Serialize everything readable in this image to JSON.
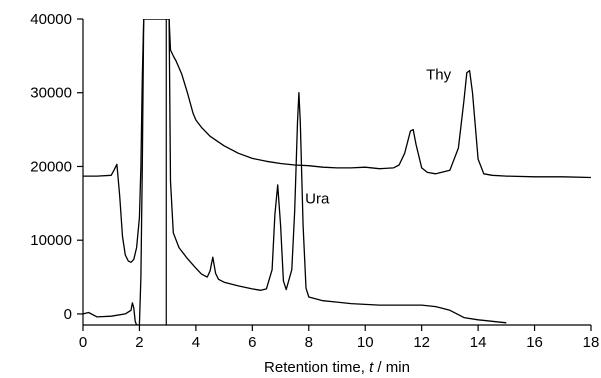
{
  "chart_data": {
    "type": "line",
    "title": "",
    "xlabel_parts": [
      "Retention time, ",
      "t",
      " / min"
    ],
    "ylabel": "",
    "xlim": [
      0,
      18
    ],
    "ylim": [
      -1500,
      40000
    ],
    "x_ticks": [
      0,
      2,
      4,
      6,
      8,
      10,
      12,
      14,
      16,
      18
    ],
    "y_ticks": [
      0,
      10000,
      20000,
      30000,
      40000
    ],
    "grid": false,
    "legend": "none",
    "annotations": [
      {
        "text": "Thy",
        "x": 12.6,
        "y": 31800
      },
      {
        "text": "Ura",
        "x": 8.3,
        "y": 15000
      }
    ],
    "vertical_marker_x": 2.95,
    "series": [
      {
        "x": [
          0,
          0.5,
          1.0,
          1.1,
          1.2,
          1.3,
          1.4,
          1.5,
          1.6,
          1.7,
          1.8,
          1.9,
          2.0,
          2.05,
          2.1,
          2.15,
          2.2,
          2.3,
          2.5,
          2.7,
          2.9,
          3.0,
          3.05,
          3.1,
          3.2,
          3.3,
          3.5,
          3.7,
          3.9,
          4.0,
          4.2,
          4.5,
          5.0,
          5.5,
          6.0,
          6.5,
          7.0,
          7.5,
          8.0,
          8.5,
          9.0,
          9.5,
          10.0,
          10.5,
          11.0,
          11.2,
          11.4,
          11.6,
          11.7,
          11.8,
          12.0,
          12.2,
          12.5,
          13.0,
          13.3,
          13.5,
          13.6,
          13.7,
          13.8,
          14.0,
          14.2,
          14.5,
          15.0,
          16.0,
          17.0,
          18.0
        ],
        "y": [
          18700,
          18700,
          18800,
          19500,
          20300,
          16000,
          10500,
          8000,
          7200,
          7000,
          7400,
          9000,
          13000,
          20000,
          32000,
          40000,
          40000,
          40000,
          40000,
          40000,
          40000,
          40000,
          40000,
          35800,
          35000,
          34300,
          32500,
          30000,
          27200,
          26300,
          25300,
          24100,
          22800,
          21800,
          21100,
          20700,
          20400,
          20200,
          20100,
          19900,
          19800,
          19800,
          19900,
          19700,
          19800,
          20200,
          21800,
          24800,
          25000,
          23000,
          19800,
          19200,
          19000,
          19500,
          22500,
          29000,
          32700,
          33000,
          30000,
          21000,
          19000,
          18800,
          18700,
          18600,
          18600,
          18500
        ]
      },
      {
        "x": [
          0,
          0.2,
          0.5,
          1.0,
          1.5,
          1.7,
          1.75,
          1.8,
          1.85,
          1.9,
          2.0,
          2.05,
          2.1,
          2.15,
          2.2,
          2.25,
          2.3,
          2.5,
          2.7,
          2.9,
          3.0,
          3.05,
          3.1,
          3.2,
          3.4,
          3.7,
          4.0,
          4.2,
          4.4,
          4.5,
          4.6,
          4.7,
          4.8,
          5.0,
          5.5,
          6.0,
          6.3,
          6.5,
          6.7,
          6.8,
          6.9,
          7.0,
          7.1,
          7.2,
          7.4,
          7.5,
          7.6,
          7.65,
          7.7,
          7.8,
          7.9,
          8.0,
          8.5,
          9.0,
          9.5,
          10.0,
          10.5,
          11.0,
          12.0,
          12.5,
          13.0,
          13.5,
          14.0,
          14.5,
          15.0
        ],
        "y": [
          0,
          200,
          -400,
          -300,
          0,
          500,
          1500,
          800,
          -1000,
          -1500,
          -1500,
          5000,
          20000,
          40000,
          40000,
          40000,
          40000,
          40000,
          40000,
          40000,
          40000,
          40000,
          18000,
          11000,
          9000,
          7500,
          6200,
          5400,
          5000,
          5800,
          7700,
          5500,
          4700,
          4300,
          3800,
          3400,
          3200,
          3400,
          6000,
          13500,
          17500,
          12000,
          4500,
          3300,
          6000,
          14000,
          26000,
          30000,
          26000,
          12000,
          3500,
          2300,
          1800,
          1600,
          1400,
          1300,
          1200,
          1200,
          1200,
          1000,
          500,
          -500,
          -800,
          -1000,
          -1200
        ]
      }
    ]
  }
}
